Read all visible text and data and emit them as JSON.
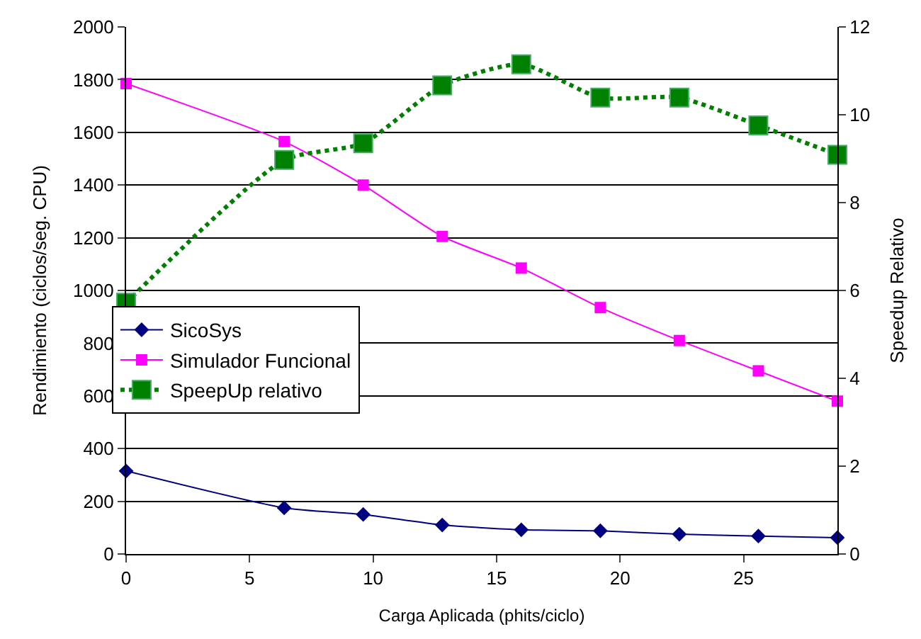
{
  "chart_data": {
    "type": "line",
    "xlabel": "Carga Aplicada (phits/ciclo)",
    "ylabel": "Rendimiento (ciclos/seg. CPU)",
    "y2label": "Speedup Relativo",
    "x": [
      0,
      6.4,
      9.6,
      12.8,
      16,
      19.2,
      22.4,
      25.6,
      28.8
    ],
    "xlim": [
      0,
      28.8
    ],
    "xticks": [
      0,
      5,
      10,
      15,
      20,
      25
    ],
    "ylim": [
      0,
      2000
    ],
    "yticks": [
      0,
      200,
      400,
      600,
      800,
      1000,
      1200,
      1400,
      1600,
      1800,
      2000
    ],
    "y2lim": [
      0,
      12
    ],
    "y2ticks": [
      0,
      2,
      4,
      6,
      8,
      10,
      12
    ],
    "grid": "y",
    "legend": "left",
    "series": [
      {
        "name": "SicoSys",
        "color": "#000080",
        "marker": "diamond",
        "line_style": "solid",
        "values": [
          315,
          175,
          150,
          110,
          92,
          88,
          75,
          68,
          62
        ]
      },
      {
        "name": "Simulador Funcional",
        "color": "#ff00ff",
        "marker": "square",
        "line_style": "solid",
        "values": [
          1785,
          1565,
          1400,
          1205,
          1085,
          935,
          810,
          695,
          580
        ]
      },
      {
        "name": "SpeepUp relativo",
        "color": "#008000",
        "marker": "square",
        "line_style": "dotted",
        "axis": "y2",
        "values": [
          5.72,
          8.97,
          9.35,
          10.67,
          11.15,
          10.39,
          10.39,
          9.76,
          9.09
        ]
      }
    ]
  }
}
